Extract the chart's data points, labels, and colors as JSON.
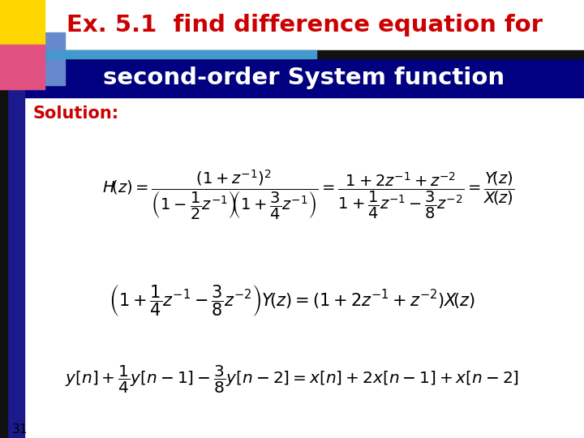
{
  "title_line1": "Ex. 5.1  find difference equation for",
  "title_line2": "second-order System function",
  "solution_label": "Solution:",
  "page_number": "31",
  "bg_color": "#FFFFFF",
  "title1_color": "#CC0000",
  "title2_color": "#FFFFFF",
  "title2_bg_color": "#000080",
  "solution_color": "#CC0000",
  "body_color": "#000000",
  "left_bar_color": "#1A1A8C",
  "black_bar_color": "#111111",
  "cyan_bar_color": "#4499CC",
  "corner_yellow": "#FFD700",
  "corner_pink": "#E05080",
  "corner_blue_grad": "#6688CC"
}
